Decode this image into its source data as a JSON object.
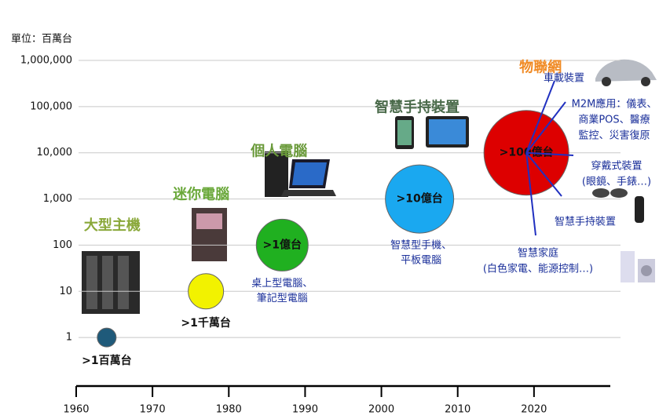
{
  "chart_data": {
    "type": "bubble",
    "y_label": "單位：百萬台",
    "log_y": true,
    "grid": true,
    "xlim": [
      1960,
      2030
    ],
    "xticks": [
      1960,
      1970,
      1980,
      1990,
      2000,
      2010,
      2020
    ],
    "ylim": [
      0.1,
      1000000
    ],
    "yticks": [
      1,
      10,
      100,
      {
        "value": 1000,
        "label": "1,000"
      },
      {
        "value": 10000,
        "label": "10,000"
      },
      {
        "value": 100000,
        "label": "100,000"
      },
      {
        "value": 1000000,
        "label": "1,000,000"
      }
    ],
    "eras": [
      "大型主機",
      "迷你電腦",
      "個人電腦",
      "智慧手持裝置",
      "物聯網"
    ],
    "x": [
      1964,
      1977,
      1987,
      2005,
      2019
    ],
    "values": [
      1,
      10,
      100,
      1000,
      10000
    ],
    "value_labels": [
      ">1百萬台",
      ">1千萬台",
      ">1億台",
      ">10億台",
      ">100億台"
    ],
    "colors": [
      "#1f5a7a",
      "#f2f200",
      "#20b020",
      "#1aa8f0",
      "#dd0000"
    ],
    "annotations": [
      {
        "lines": [
          "桌上型電腦、",
          "筆記型電腦"
        ]
      },
      {
        "lines": [
          "智慧型手機、",
          "平板電腦"
        ]
      }
    ],
    "iot_applications": [
      {
        "lines": [
          "車載裝置"
        ]
      },
      {
        "lines": [
          "M2M應用：儀表、",
          "商業POS、醫療",
          "監控、災害復原"
        ]
      },
      {
        "lines": [
          "穿戴式裝置",
          "(眼鏡、手錶…)"
        ]
      },
      {
        "lines": [
          "智慧手持裝置"
        ]
      },
      {
        "lines": [
          "智慧家庭",
          "(白色家電、能源控制…)"
        ]
      }
    ]
  }
}
